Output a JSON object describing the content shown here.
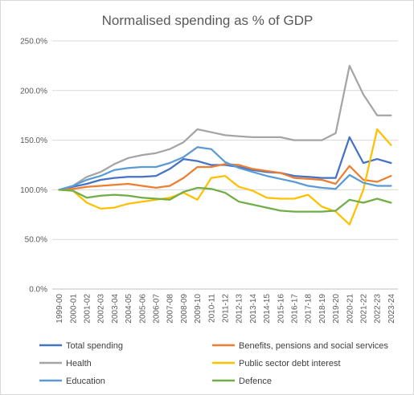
{
  "chart_data": {
    "type": "line",
    "title": "Normalised spending as % of GDP",
    "xlabel": "",
    "ylabel": "",
    "ylim": [
      0,
      250
    ],
    "yticks": [
      "0.0%",
      "50.0%",
      "100.0%",
      "150.0%",
      "200.0%",
      "250.0%"
    ],
    "grid": true,
    "legend_position": "bottom",
    "x": [
      "1999-00",
      "2000-01",
      "2001-02",
      "2002-03",
      "2003-04",
      "2004-05",
      "2005-06",
      "2006-07",
      "2007-08",
      "2008-09",
      "2009-10",
      "2010-11",
      "2011-12",
      "2012-13",
      "2013-14",
      "2014-15",
      "2015-16",
      "2016-17",
      "2017-18",
      "2018-19",
      "2019-20",
      "2020-21",
      "2021-22",
      "2022-23",
      "2023-24"
    ],
    "series": [
      {
        "name": "Total spending",
        "color": "#4472c4",
        "values": [
          100,
          103,
          106,
          110,
          112,
          113,
          113,
          114,
          121,
          131,
          129,
          125,
          125,
          123,
          120,
          118,
          117,
          114,
          113,
          112,
          112,
          153,
          127,
          131,
          127
        ]
      },
      {
        "name": "Benefits, pensions and social services",
        "color": "#ed7d31",
        "values": [
          100,
          101,
          103,
          104,
          105,
          106,
          104,
          102,
          104,
          112,
          123,
          123,
          126,
          125,
          121,
          119,
          117,
          112,
          111,
          110,
          106,
          124,
          110,
          108,
          114
        ]
      },
      {
        "name": "Health",
        "color": "#a5a5a5",
        "values": [
          100,
          104,
          113,
          118,
          126,
          132,
          135,
          137,
          141,
          148,
          161,
          158,
          155,
          154,
          153,
          153,
          153,
          150,
          150,
          150,
          157,
          225,
          196,
          175,
          175
        ]
      },
      {
        "name": "Public sector debt interest",
        "color": "#ffc000",
        "values": [
          100,
          99,
          87,
          81,
          82,
          86,
          88,
          90,
          92,
          97,
          90,
          112,
          114,
          103,
          99,
          92,
          91,
          91,
          95,
          83,
          78,
          65,
          100,
          161,
          145
        ]
      },
      {
        "name": "Education",
        "color": "#5b9bd5",
        "values": [
          100,
          104,
          110,
          114,
          120,
          122,
          123,
          123,
          127,
          133,
          143,
          141,
          128,
          122,
          118,
          114,
          111,
          108,
          104,
          102,
          101,
          115,
          107,
          104,
          104
        ]
      },
      {
        "name": "Defence",
        "color": "#70ad47",
        "values": [
          100,
          99,
          92,
          94,
          95,
          94,
          92,
          91,
          90,
          98,
          102,
          101,
          97,
          88,
          85,
          82,
          79,
          78,
          78,
          78,
          79,
          90,
          87,
          91,
          87
        ]
      }
    ]
  }
}
